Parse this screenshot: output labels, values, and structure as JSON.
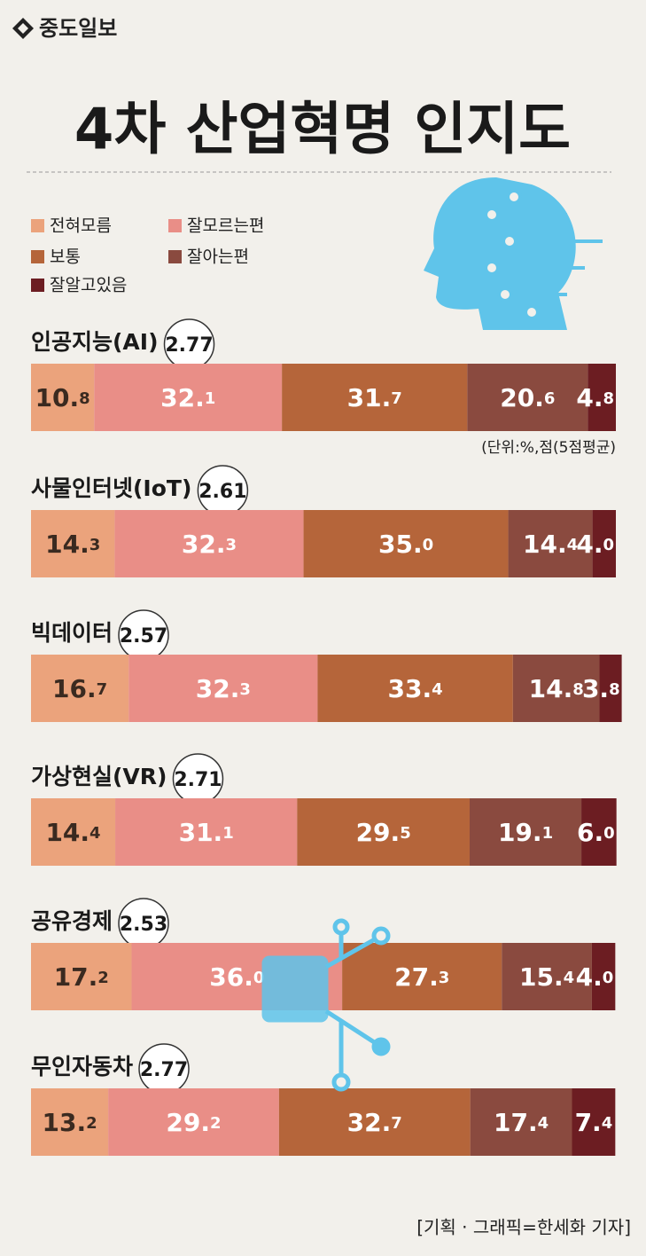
{
  "header": {
    "logo": "중도일보"
  },
  "chart_data": {
    "type": "stacked-bar-horizontal",
    "title": "4차 산업혁명 인지도",
    "unit_note": "(단위:%,점(5점평균)",
    "credit": "[기획 · 그래픽=한세화 기자]",
    "categories": [
      "인공지능(AI)",
      "사물인터넷(IoT)",
      "빅데이터",
      "가상현실(VR)",
      "공유경제",
      "무인자동차"
    ],
    "scores": [
      2.77,
      2.61,
      2.57,
      2.71,
      2.53,
      2.77
    ],
    "xlim": [
      0,
      100
    ],
    "series": [
      {
        "name": "전혀모름",
        "color": "#eba37c",
        "values": [
          10.8,
          14.3,
          16.7,
          14.4,
          17.2,
          13.2
        ],
        "value_labels": [
          "10.8",
          "14.3",
          "16.7",
          "14.4",
          "17.2",
          "13.2"
        ]
      },
      {
        "name": "잘모르는편",
        "color": "#e98e87",
        "values": [
          32.1,
          32.3,
          32.3,
          31.1,
          36.0,
          29.2
        ],
        "value_labels": [
          "32.1",
          "32.3",
          "32.3",
          "31.1",
          "36.0",
          "29.2"
        ]
      },
      {
        "name": "보통",
        "color": "#b5653a",
        "values": [
          31.7,
          35.0,
          33.4,
          29.5,
          27.3,
          32.7
        ],
        "value_labels": [
          "31.7",
          "35.0",
          "33.4",
          "29.5",
          "27.3",
          "32.7"
        ]
      },
      {
        "name": "잘아는편",
        "color": "#8a4a3f",
        "values": [
          20.6,
          14.4,
          14.8,
          19.1,
          15.4,
          17.4
        ],
        "value_labels": [
          "20.6",
          "14.4",
          "14.8",
          "19.1",
          "15.4",
          "17.4"
        ]
      },
      {
        "name": "잘알고있음",
        "color": "#6c1d22",
        "values": [
          4.8,
          4.0,
          3.8,
          6.0,
          4.0,
          7.4
        ],
        "value_labels": [
          "4.8",
          "4.0",
          "3.8",
          "6.0",
          "4.0",
          "7.4"
        ]
      }
    ]
  }
}
